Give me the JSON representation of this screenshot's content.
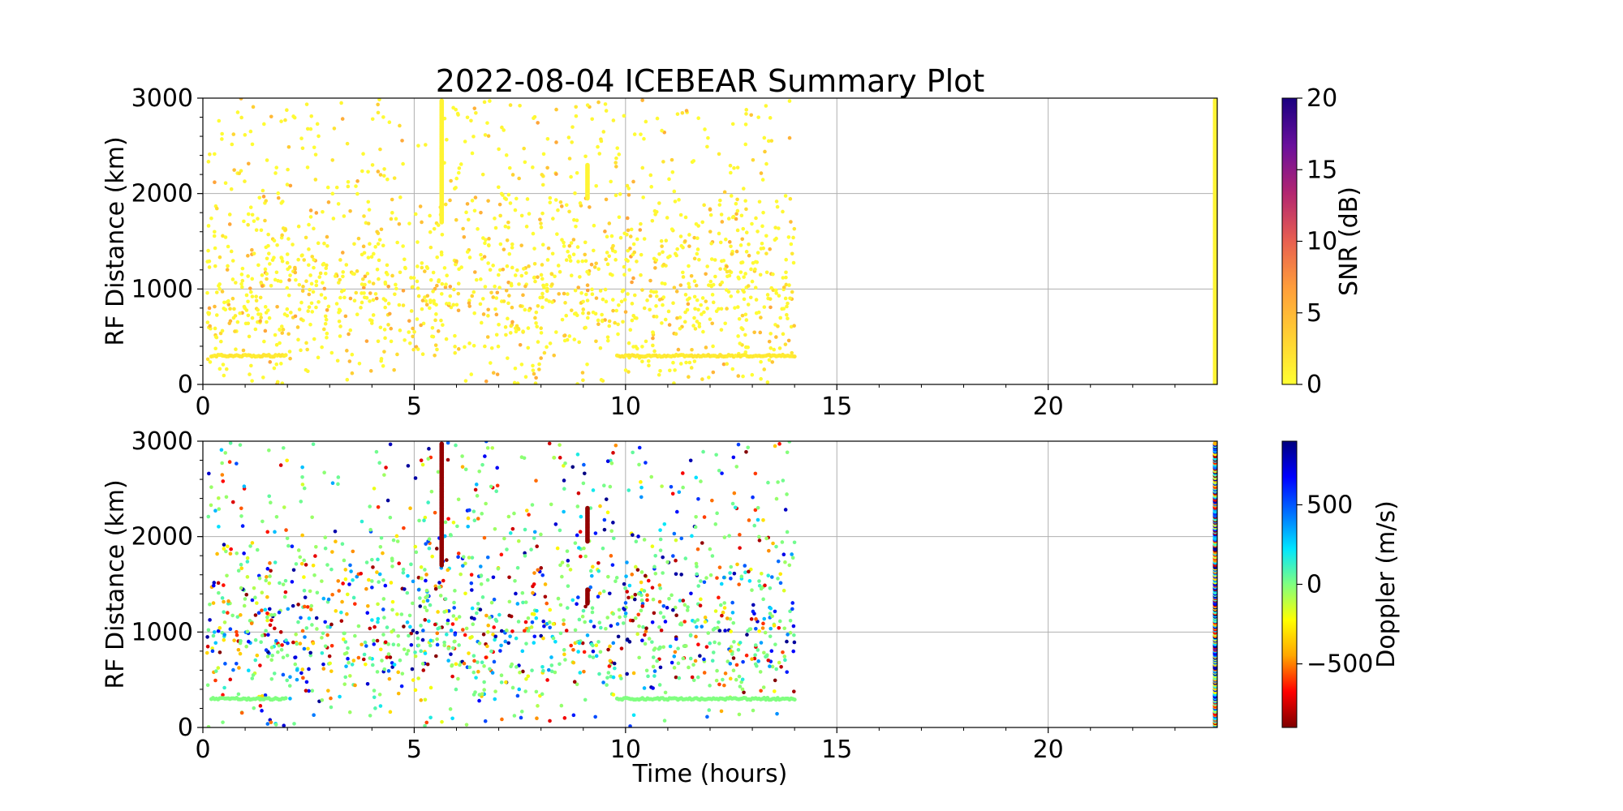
{
  "figure_title": "2022-08-04 ICEBEAR Summary Plot",
  "colors": {
    "grid": "#b0b0b0",
    "snr_colormap": [
      "#ffff33",
      "#ffd033",
      "#ff9f3a",
      "#e86050",
      "#b32670",
      "#6a0f9c",
      "#1a0080"
    ],
    "doppler_colormap": [
      "#7f0000",
      "#ff0000",
      "#ffa500",
      "#ffff00",
      "#80ff80",
      "#00e5ff",
      "#0070ff",
      "#0000ff",
      "#00007f"
    ]
  },
  "chart_data": [
    {
      "type": "scatter",
      "name": "snr-panel",
      "title": "2022-08-04 ICEBEAR Summary Plot",
      "xlabel": "",
      "ylabel": "RF Distance (km)",
      "xlim": [
        0,
        24
      ],
      "ylim": [
        0,
        3000
      ],
      "x_ticks": [
        0,
        5,
        10,
        15,
        20
      ],
      "y_ticks": [
        0,
        1000,
        2000,
        3000
      ],
      "grid": true,
      "color_by": "SNR",
      "colorbar": {
        "label": "SNR (dB)",
        "min": 0,
        "max": 20,
        "ticks": [
          0,
          5,
          10,
          15,
          20
        ]
      },
      "features": {
        "scatter_time_range_hours": [
          0.1,
          14.0
        ],
        "range_km": [
          0,
          3000
        ],
        "constant_range_band_km": 300,
        "band_segments_hours": [
          [
            0.2,
            2.0
          ],
          [
            9.8,
            14.0
          ]
        ],
        "vertical_streaks": [
          {
            "time_hours": 5.65,
            "range_km": [
              1700,
              2980
            ]
          },
          {
            "time_hours": 9.1,
            "range_km": [
              1950,
              2300
            ]
          },
          {
            "time_hours": 23.95,
            "range_km": [
              0,
              2980
            ]
          }
        ]
      }
    },
    {
      "type": "scatter",
      "name": "doppler-panel",
      "title": "",
      "xlabel": "Time (hours)",
      "ylabel": "RF Distance (km)",
      "xlim": [
        0,
        24
      ],
      "ylim": [
        0,
        3000
      ],
      "x_ticks": [
        0,
        5,
        10,
        15,
        20
      ],
      "y_ticks": [
        0,
        1000,
        2000,
        3000
      ],
      "grid": true,
      "color_by": "Doppler",
      "colorbar": {
        "label": "Doppler (m/s)",
        "min": -900,
        "max": 900,
        "ticks": [
          -500,
          0,
          500
        ],
        "tick_labels": [
          "−500",
          "0",
          "500"
        ]
      },
      "features": {
        "scatter_time_range_hours": [
          0.1,
          14.0
        ],
        "range_km": [
          0,
          3000
        ],
        "constant_range_band_km": 300,
        "band_segments_hours": [
          [
            0.2,
            2.0
          ],
          [
            9.8,
            14.0
          ]
        ],
        "vertical_streaks": [
          {
            "time_hours": 5.65,
            "range_km": [
              1700,
              2980
            ]
          },
          {
            "time_hours": 9.1,
            "range_km": [
              1950,
              2300
            ]
          },
          {
            "time_hours": 9.1,
            "range_km": [
              1300,
              1450
            ]
          },
          {
            "time_hours": 23.95,
            "range_km": [
              0,
              2980
            ]
          }
        ]
      }
    }
  ]
}
